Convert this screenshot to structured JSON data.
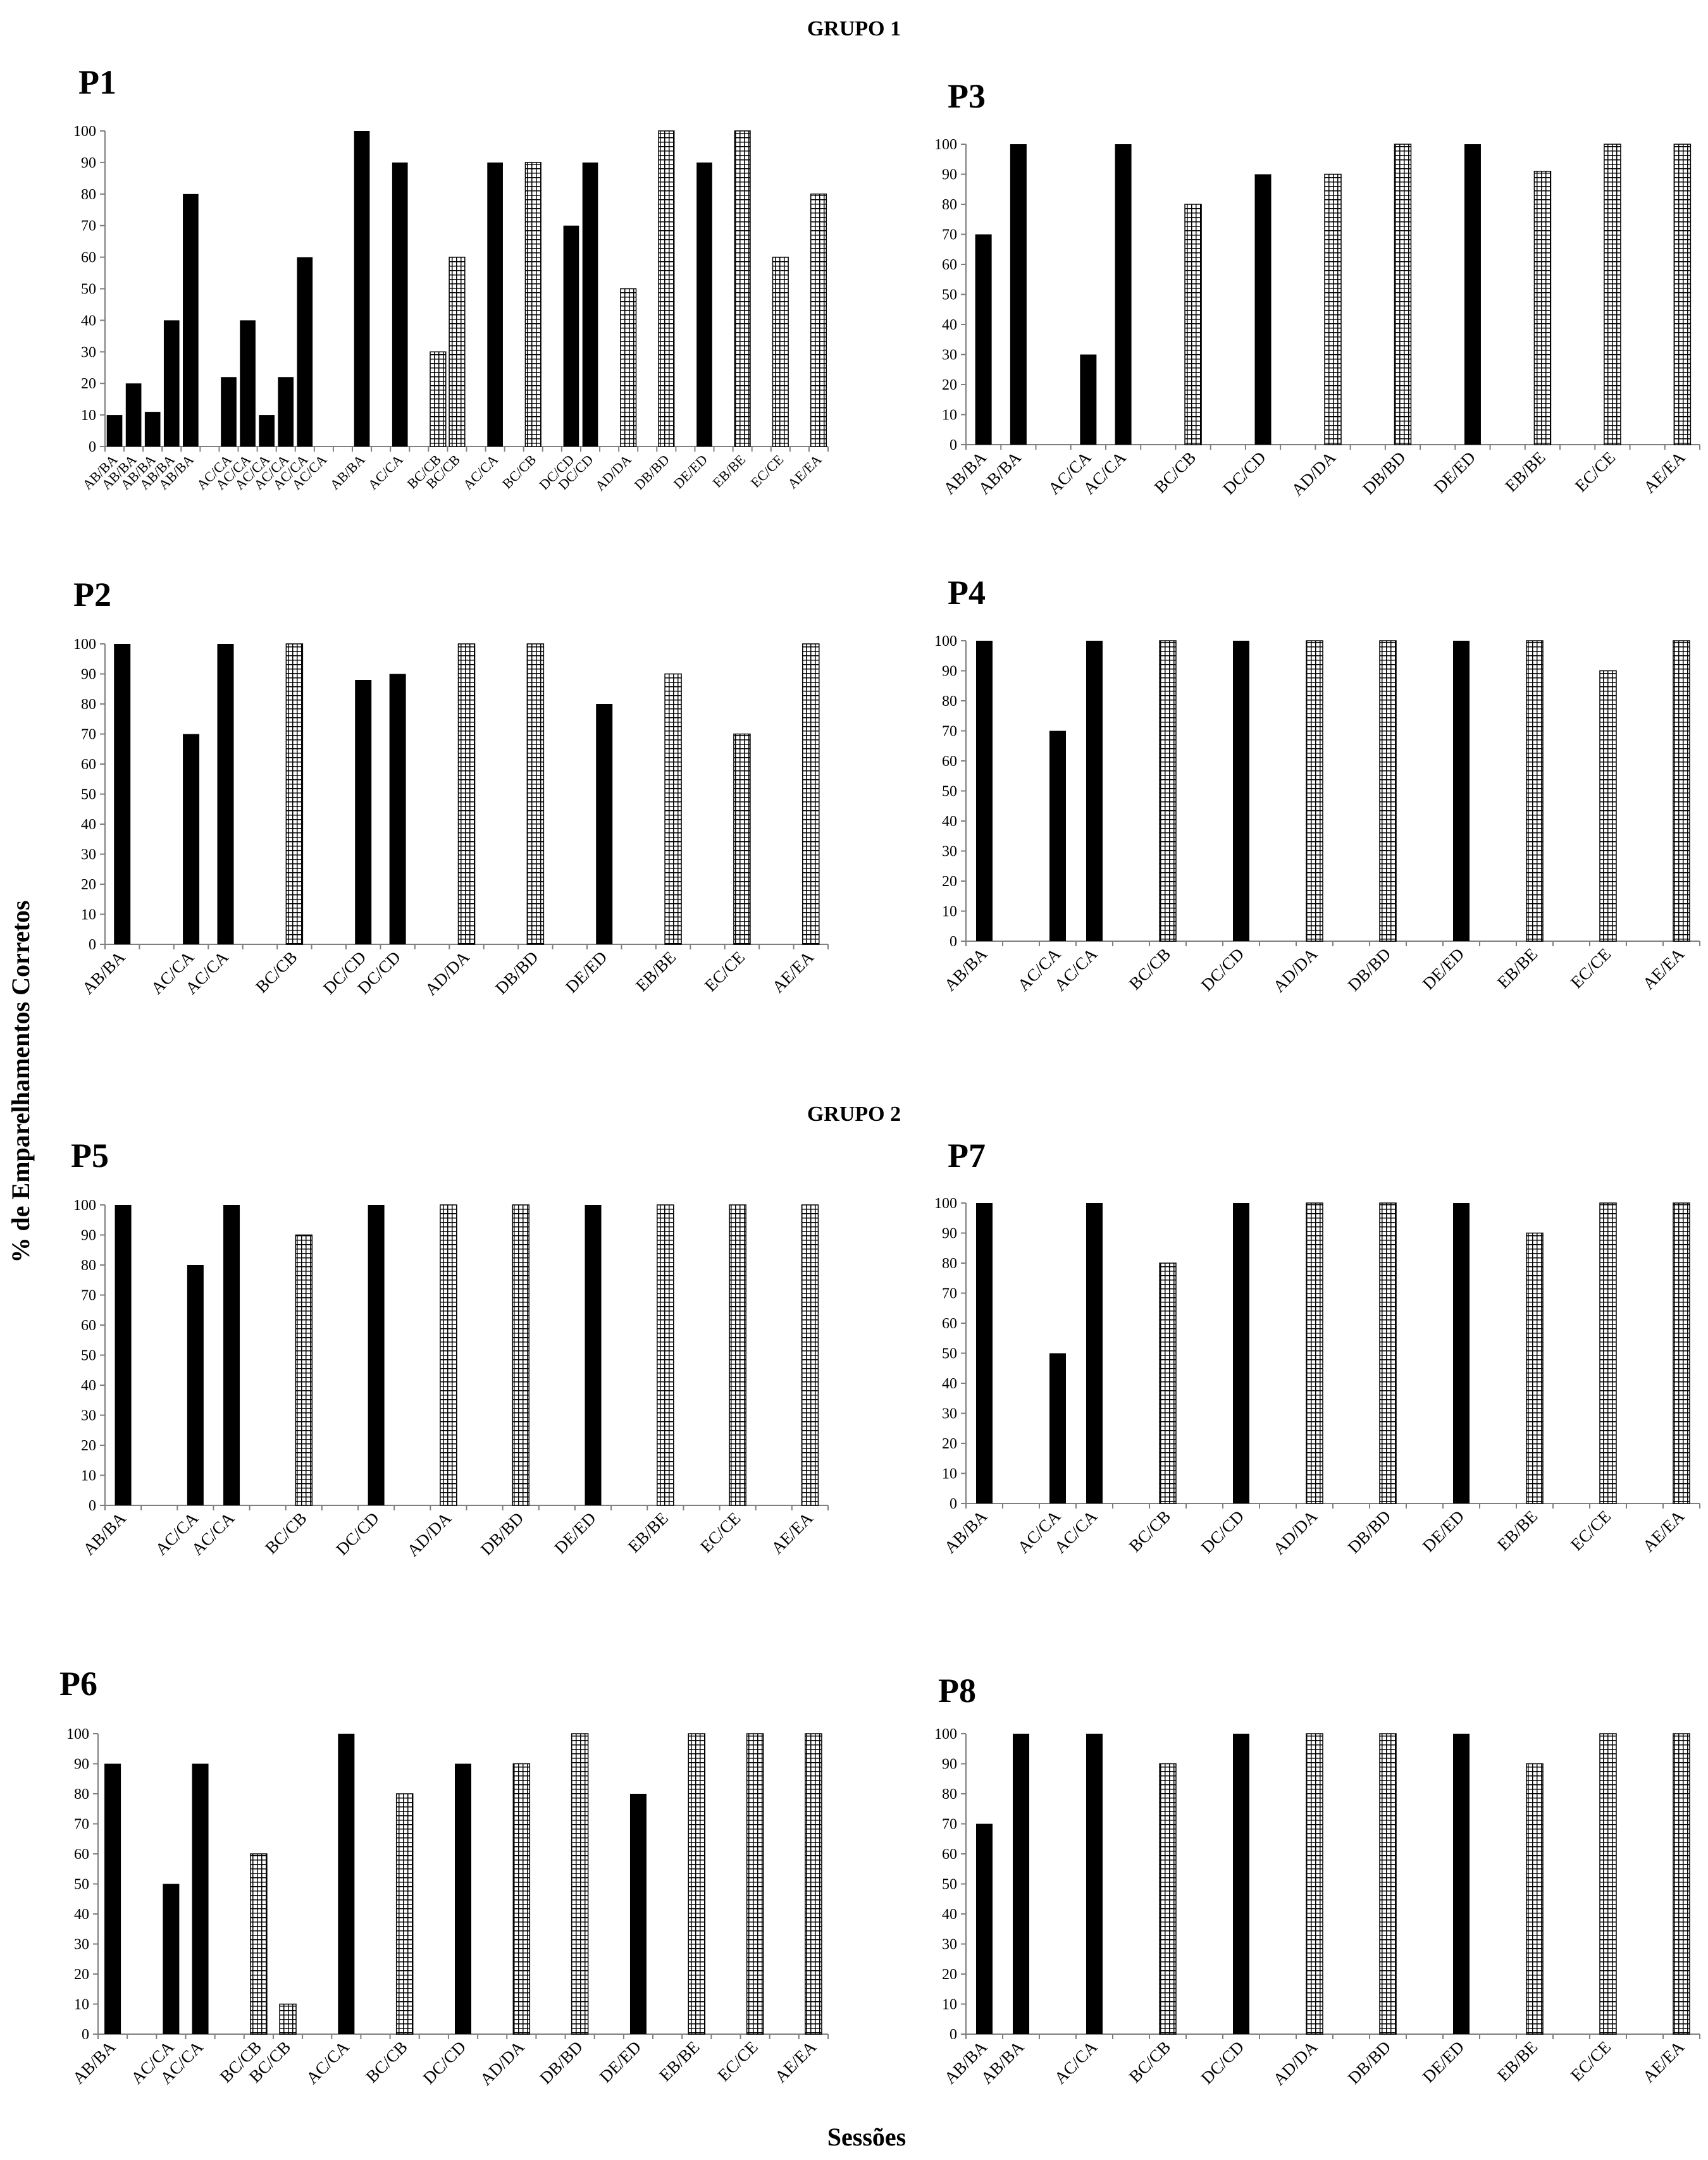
{
  "figure": {
    "group1_label": "GRUPO 1",
    "group2_label": "GRUPO 2",
    "ylabel": "% de Emparelhamentos Corretos",
    "xlabel": "Sessões",
    "legend_note": "solid bars = black fill; hatched bars = grid pattern"
  },
  "colors": {
    "solid": "#000000",
    "hatch": "#000000",
    "axis": "#7f7f7f",
    "background": "#ffffff"
  },
  "chart_data": [
    {
      "title": "P1",
      "type": "bar",
      "ylim": [
        0,
        100
      ],
      "yticks": [
        0,
        10,
        20,
        30,
        40,
        50,
        60,
        70,
        80,
        90,
        100
      ],
      "categories": [
        "AB/BA",
        "AB/BA",
        "AB/BA",
        "AB/BA",
        "AB/BA",
        "",
        "AC/CA",
        "AC/CA",
        "AC/CA",
        "AC/CA",
        "AC/CA",
        "AC/CA",
        "",
        "AB/BA",
        "",
        "AC/CA",
        "",
        "BC/CB",
        "BC/CB",
        "",
        "AC/CA",
        "",
        "BC/CB",
        "",
        "DC/CD",
        "DC/CD",
        "",
        "AD/DA",
        "",
        "DB/BD",
        "",
        "DE/ED",
        "",
        "EB/BE",
        "",
        "EC/CE",
        "",
        "AE/EA"
      ],
      "values": [
        10,
        20,
        11,
        40,
        80,
        null,
        22,
        40,
        10,
        22,
        60,
        null,
        null,
        100,
        null,
        90,
        null,
        30,
        60,
        null,
        90,
        null,
        90,
        null,
        70,
        90,
        null,
        50,
        null,
        100,
        null,
        90,
        null,
        100,
        null,
        60,
        null,
        80
      ],
      "patterns": [
        "solid",
        "solid",
        "solid",
        "solid",
        "solid",
        "",
        "solid",
        "solid",
        "solid",
        "solid",
        "solid",
        "",
        "",
        "solid",
        "",
        "solid",
        "",
        "hatch",
        "hatch",
        "",
        "solid",
        "",
        "hatch",
        "",
        "solid",
        "solid",
        "",
        "hatch",
        "",
        "hatch",
        "",
        "solid",
        "",
        "hatch",
        "",
        "hatch",
        "",
        "hatch"
      ]
    },
    {
      "title": "P3",
      "type": "bar",
      "ylim": [
        0,
        100
      ],
      "yticks": [
        0,
        10,
        20,
        30,
        40,
        50,
        60,
        70,
        80,
        90,
        100
      ],
      "categories": [
        "AB/BA",
        "AB/BA",
        "",
        "AC/CA",
        "AC/CA",
        "",
        "BC/CB",
        "",
        "DC/CD",
        "",
        "AD/DA",
        "",
        "DB/BD",
        "",
        "DE/ED",
        "",
        "EB/BE",
        "",
        "EC/CE",
        "",
        "AE/EA"
      ],
      "values": [
        70,
        100,
        null,
        30,
        100,
        null,
        80,
        null,
        90,
        null,
        90,
        null,
        100,
        null,
        100,
        null,
        91,
        null,
        100,
        null,
        100
      ],
      "patterns": [
        "solid",
        "solid",
        "",
        "solid",
        "solid",
        "",
        "hatch",
        "",
        "solid",
        "",
        "hatch",
        "",
        "hatch",
        "",
        "solid",
        "",
        "hatch",
        "",
        "hatch",
        "",
        "hatch"
      ]
    },
    {
      "title": "P2",
      "type": "bar",
      "ylim": [
        0,
        100
      ],
      "yticks": [
        0,
        10,
        20,
        30,
        40,
        50,
        60,
        70,
        80,
        90,
        100
      ],
      "categories": [
        "AB/BA",
        "",
        "AC/CA",
        "AC/CA",
        "",
        "BC/CB",
        "",
        "DC/CD",
        "DC/CD",
        "",
        "AD/DA",
        "",
        "DB/BD",
        "",
        "DE/ED",
        "",
        "EB/BE",
        "",
        "EC/CE",
        "",
        "AE/EA"
      ],
      "values": [
        100,
        null,
        70,
        100,
        null,
        100,
        null,
        88,
        90,
        null,
        100,
        null,
        100,
        null,
        80,
        null,
        90,
        null,
        70,
        null,
        100
      ],
      "patterns": [
        "solid",
        "",
        "solid",
        "solid",
        "",
        "hatch",
        "",
        "solid",
        "solid",
        "",
        "hatch",
        "",
        "hatch",
        "",
        "solid",
        "",
        "hatch",
        "",
        "hatch",
        "",
        "hatch"
      ]
    },
    {
      "title": "P4",
      "type": "bar",
      "ylim": [
        0,
        100
      ],
      "yticks": [
        0,
        10,
        20,
        30,
        40,
        50,
        60,
        70,
        80,
        90,
        100
      ],
      "categories": [
        "AB/BA",
        "",
        "AC/CA",
        "AC/CA",
        "",
        "BC/CB",
        "",
        "DC/CD",
        "",
        "AD/DA",
        "",
        "DB/BD",
        "",
        "DE/ED",
        "",
        "EB/BE",
        "",
        "EC/CE",
        "",
        "AE/EA"
      ],
      "values": [
        100,
        null,
        70,
        100,
        null,
        100,
        null,
        100,
        null,
        100,
        null,
        100,
        null,
        100,
        null,
        100,
        null,
        90,
        null,
        100
      ],
      "patterns": [
        "solid",
        "",
        "solid",
        "solid",
        "",
        "hatch",
        "",
        "solid",
        "",
        "hatch",
        "",
        "hatch",
        "",
        "solid",
        "",
        "hatch",
        "",
        "hatch",
        "",
        "hatch"
      ]
    },
    {
      "title": "P5",
      "type": "bar",
      "ylim": [
        0,
        100
      ],
      "yticks": [
        0,
        10,
        20,
        30,
        40,
        50,
        60,
        70,
        80,
        90,
        100
      ],
      "categories": [
        "AB/BA",
        "",
        "AC/CA",
        "AC/CA",
        "",
        "BC/CB",
        "",
        "DC/CD",
        "",
        "AD/DA",
        "",
        "DB/BD",
        "",
        "DE/ED",
        "",
        "EB/BE",
        "",
        "EC/CE",
        "",
        "AE/EA"
      ],
      "values": [
        100,
        null,
        80,
        100,
        null,
        90,
        null,
        100,
        null,
        100,
        null,
        100,
        null,
        100,
        null,
        100,
        null,
        100,
        null,
        100
      ],
      "patterns": [
        "solid",
        "",
        "solid",
        "solid",
        "",
        "hatch",
        "",
        "solid",
        "",
        "hatch",
        "",
        "hatch",
        "",
        "solid",
        "",
        "hatch",
        "",
        "hatch",
        "",
        "hatch"
      ]
    },
    {
      "title": "P7",
      "type": "bar",
      "ylim": [
        0,
        100
      ],
      "yticks": [
        0,
        10,
        20,
        30,
        40,
        50,
        60,
        70,
        80,
        90,
        100
      ],
      "categories": [
        "AB/BA",
        "",
        "AC/CA",
        "AC/CA",
        "",
        "BC/CB",
        "",
        "DC/CD",
        "",
        "AD/DA",
        "",
        "DB/BD",
        "",
        "DE/ED",
        "",
        "EB/BE",
        "",
        "EC/CE",
        "",
        "AE/EA"
      ],
      "values": [
        100,
        null,
        50,
        100,
        null,
        80,
        null,
        100,
        null,
        100,
        null,
        100,
        null,
        100,
        null,
        90,
        null,
        100,
        null,
        100
      ],
      "patterns": [
        "solid",
        "",
        "solid",
        "solid",
        "",
        "hatch",
        "",
        "solid",
        "",
        "hatch",
        "",
        "hatch",
        "",
        "solid",
        "",
        "hatch",
        "",
        "hatch",
        "",
        "hatch"
      ]
    },
    {
      "title": "P6",
      "type": "bar",
      "ylim": [
        0,
        100
      ],
      "yticks": [
        0,
        10,
        20,
        30,
        40,
        50,
        60,
        70,
        80,
        90,
        100
      ],
      "categories": [
        "AB/BA",
        "",
        "AC/CA",
        "AC/CA",
        "",
        "BC/CB",
        "BC/CB",
        "",
        "AC/CA",
        "",
        "BC/CB",
        "",
        "DC/CD",
        "",
        "AD/DA",
        "",
        "DB/BD",
        "",
        "DE/ED",
        "",
        "EB/BE",
        "",
        "EC/CE",
        "",
        "AE/EA"
      ],
      "values": [
        90,
        null,
        50,
        90,
        null,
        60,
        10,
        null,
        100,
        null,
        80,
        null,
        90,
        null,
        90,
        null,
        100,
        null,
        80,
        null,
        100,
        null,
        100,
        null,
        100
      ],
      "patterns": [
        "solid",
        "",
        "solid",
        "solid",
        "",
        "hatch",
        "hatch",
        "",
        "solid",
        "",
        "hatch",
        "",
        "solid",
        "",
        "hatch",
        "",
        "hatch",
        "",
        "solid",
        "",
        "hatch",
        "",
        "hatch",
        "",
        "hatch"
      ]
    },
    {
      "title": "P8",
      "type": "bar",
      "ylim": [
        0,
        100
      ],
      "yticks": [
        0,
        10,
        20,
        30,
        40,
        50,
        60,
        70,
        80,
        90,
        100
      ],
      "categories": [
        "AB/BA",
        "AB/BA",
        "",
        "AC/CA",
        "",
        "BC/CB",
        "",
        "DC/CD",
        "",
        "AD/DA",
        "",
        "DB/BD",
        "",
        "DE/ED",
        "",
        "EB/BE",
        "",
        "EC/CE",
        "",
        "AE/EA"
      ],
      "values": [
        70,
        100,
        null,
        100,
        null,
        90,
        null,
        100,
        null,
        100,
        null,
        100,
        null,
        100,
        null,
        90,
        null,
        100,
        null,
        100
      ],
      "patterns": [
        "solid",
        "solid",
        "",
        "solid",
        "",
        "hatch",
        "",
        "solid",
        "",
        "hatch",
        "",
        "hatch",
        "",
        "solid",
        "",
        "hatch",
        "",
        "hatch",
        "",
        "hatch"
      ]
    }
  ]
}
